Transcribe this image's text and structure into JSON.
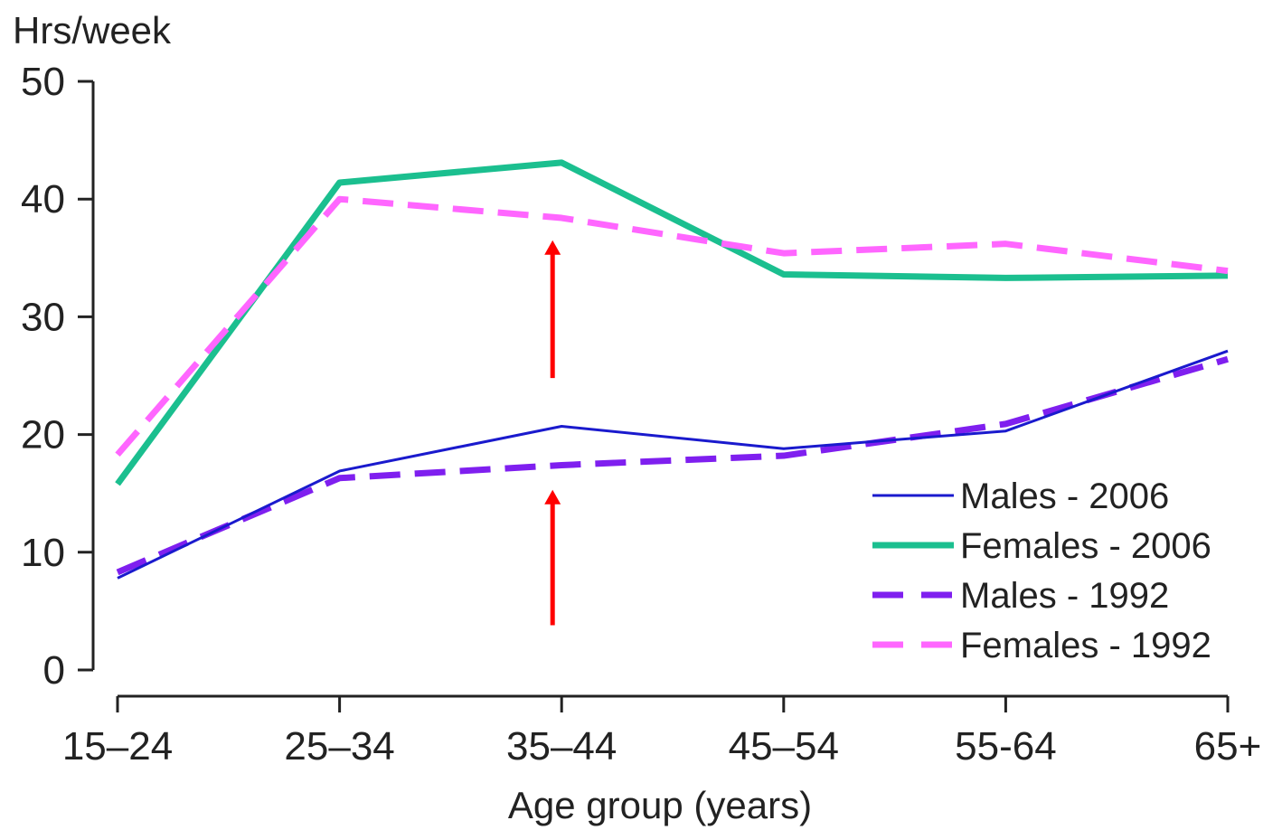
{
  "chart_data": {
    "type": "line",
    "title": "",
    "ylabel": "Hrs/week",
    "xlabel": "Age group (years)",
    "categories": [
      "15–24",
      "25–34",
      "35–44",
      "45–54",
      "55-64",
      "65+"
    ],
    "ylim": [
      0,
      50
    ],
    "yticks": [
      "0",
      "10",
      "20",
      "30",
      "40",
      "50"
    ],
    "grid": false,
    "legend_position": "bottom-right",
    "series": [
      {
        "name": "Males - 2006",
        "values": [
          7.8,
          16.9,
          20.7,
          18.8,
          20.3,
          27.1
        ],
        "color": "#1a1acd",
        "style": "solid",
        "weight": "thin"
      },
      {
        "name": "Females - 2006",
        "values": [
          15.8,
          41.4,
          43.1,
          33.6,
          33.3,
          33.5
        ],
        "color": "#1bbf8f",
        "style": "solid",
        "weight": "thick"
      },
      {
        "name": "Males - 1992",
        "values": [
          8.3,
          16.3,
          17.4,
          18.2,
          20.9,
          26.4
        ],
        "color": "#7f1fef",
        "style": "dashed",
        "weight": "thick"
      },
      {
        "name": "Females - 1992",
        "values": [
          18.3,
          40.0,
          38.4,
          35.4,
          36.2,
          33.9
        ],
        "color": "#ff66ff",
        "style": "dashed",
        "weight": "thick"
      }
    ],
    "annotations": [
      {
        "type": "arrow",
        "color": "#ff0000",
        "x_category": "35–44",
        "from_y": 3.8,
        "to_y": 15.3,
        "direction": "up"
      },
      {
        "type": "arrow",
        "color": "#ff0000",
        "x_category": "35–44",
        "from_y": 24.8,
        "to_y": 36.5,
        "direction": "up"
      }
    ]
  }
}
